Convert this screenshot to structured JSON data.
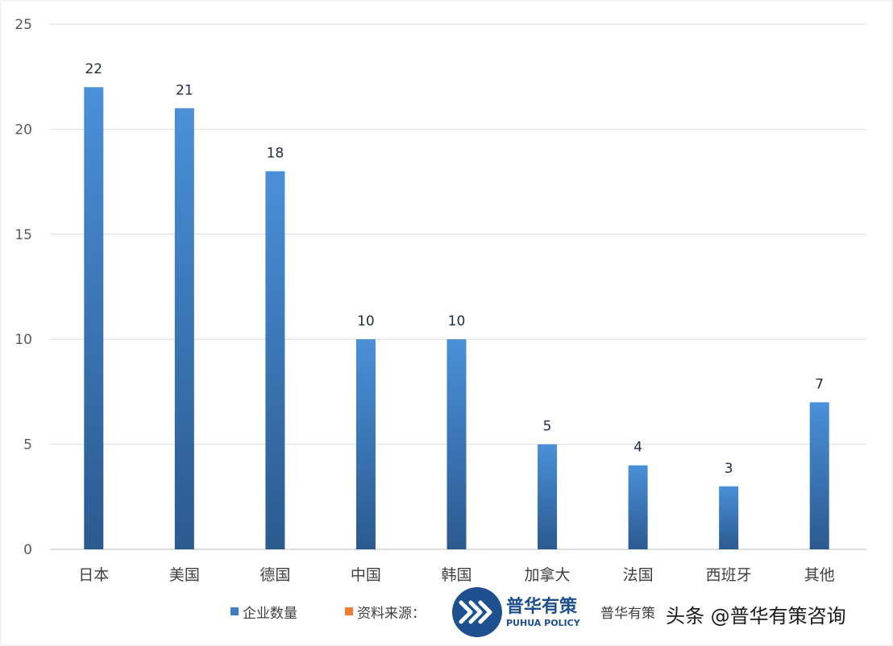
{
  "chart_data": {
    "type": "bar",
    "categories": [
      "日本",
      "美国",
      "德国",
      "中国",
      "韩国",
      "加拿大",
      "法国",
      "西班牙",
      "其他"
    ],
    "series": [
      {
        "name": "企业数量",
        "values": [
          22,
          21,
          18,
          10,
          10,
          5,
          4,
          3,
          7
        ],
        "color": "#3d7fc6"
      }
    ],
    "ylim": [
      0,
      25
    ],
    "yticks": [
      0,
      5,
      10,
      15,
      20,
      25
    ],
    "grid": true,
    "legend": {
      "placement": "bottom",
      "entries": [
        {
          "label": "企业数量",
          "color": "#3d7fc6"
        },
        {
          "label": "资料来源：",
          "color": "#ed7d31"
        }
      ],
      "source_suffix": "普华有策"
    }
  },
  "watermark": {
    "text": "头条 @普华有策咨询",
    "logo_cn": "普华有策",
    "logo_en": "PUHUA POLICY"
  },
  "colors": {
    "bar_top": "#4a90d9",
    "bar_bottom": "#2b5a8f",
    "grid": "#d9dee6",
    "axis": "#bfbfbf"
  }
}
